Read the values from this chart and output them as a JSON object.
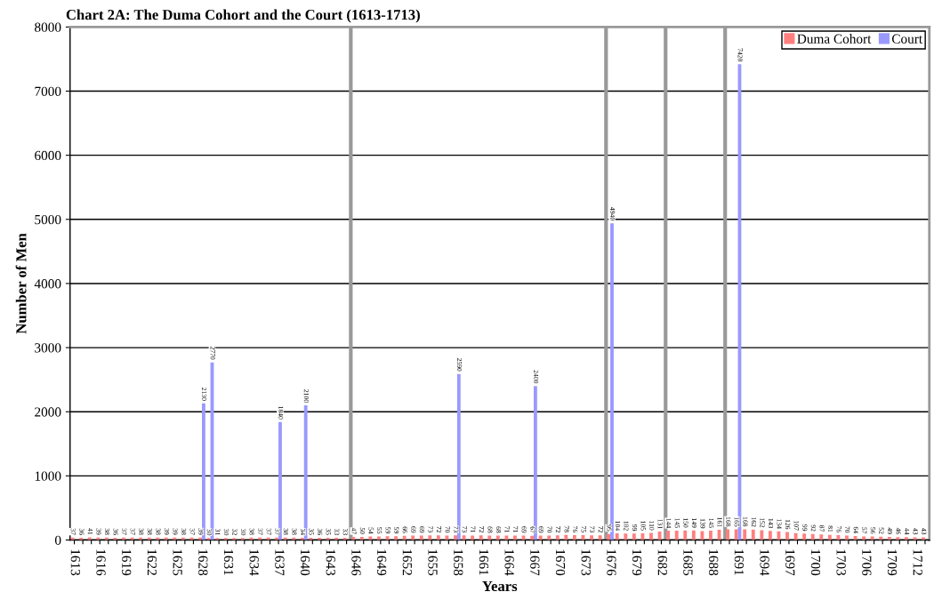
{
  "chart_data": {
    "type": "bar",
    "title": "Chart 2A: The Duma Cohort and the Court (1613-1713)",
    "xlabel": "Years",
    "ylabel": "Number of Men",
    "x": [
      1613,
      1614,
      1615,
      1616,
      1617,
      1618,
      1619,
      1620,
      1621,
      1622,
      1623,
      1624,
      1625,
      1626,
      1627,
      1628,
      1629,
      1630,
      1631,
      1632,
      1633,
      1634,
      1635,
      1636,
      1637,
      1638,
      1639,
      1640,
      1641,
      1642,
      1643,
      1644,
      1645,
      1646,
      1647,
      1648,
      1649,
      1650,
      1651,
      1652,
      1653,
      1654,
      1655,
      1656,
      1657,
      1658,
      1659,
      1660,
      1661,
      1662,
      1663,
      1664,
      1665,
      1666,
      1667,
      1668,
      1669,
      1670,
      1671,
      1672,
      1673,
      1674,
      1675,
      1676,
      1677,
      1678,
      1679,
      1680,
      1681,
      1682,
      1683,
      1684,
      1685,
      1686,
      1687,
      1688,
      1689,
      1690,
      1691,
      1692,
      1693,
      1694,
      1695,
      1696,
      1697,
      1698,
      1699,
      1700,
      1701,
      1702,
      1703,
      1704,
      1705,
      1706,
      1707,
      1708,
      1709,
      1710,
      1711,
      1712,
      1713
    ],
    "series": [
      {
        "name": "Duma Cohort",
        "color": "#ff7f7f",
        "values": [
          37,
          36,
          41,
          39,
          38,
          36,
          37,
          37,
          38,
          38,
          38,
          39,
          39,
          38,
          37,
          39,
          30,
          31,
          30,
          32,
          30,
          38,
          37,
          37,
          37,
          38,
          38,
          34,
          35,
          36,
          35,
          33,
          33,
          47,
          50,
          54,
          55,
          59,
          59,
          66,
          69,
          69,
          73,
          72,
          70,
          73,
          73,
          71,
          72,
          68,
          68,
          71,
          71,
          69,
          67,
          69,
          70,
          72,
          78,
          76,
          75,
          73,
          72,
          95,
          104,
          102,
          99,
          105,
          110,
          131,
          144,
          145,
          150,
          149,
          139,
          145,
          161,
          168,
          165,
          168,
          162,
          152,
          143,
          134,
          126,
          107,
          99,
          92,
          87,
          81,
          76,
          70,
          64,
          57,
          56,
          52,
          49,
          46,
          44,
          43,
          43
        ]
      },
      {
        "name": "Court",
        "color": "#9999ff",
        "values": [
          null,
          null,
          null,
          null,
          null,
          null,
          null,
          null,
          null,
          null,
          null,
          null,
          null,
          null,
          null,
          2130,
          2770,
          null,
          null,
          null,
          null,
          null,
          null,
          null,
          1840,
          null,
          null,
          2100,
          null,
          null,
          null,
          null,
          null,
          null,
          null,
          null,
          null,
          null,
          null,
          null,
          null,
          null,
          null,
          null,
          null,
          2590,
          null,
          null,
          null,
          null,
          null,
          null,
          null,
          null,
          2400,
          null,
          null,
          null,
          null,
          null,
          null,
          null,
          null,
          4940,
          null,
          null,
          null,
          null,
          null,
          null,
          null,
          null,
          null,
          null,
          null,
          null,
          null,
          null,
          7420,
          null,
          null,
          null,
          null,
          null,
          null,
          null,
          null,
          null,
          null,
          null,
          null,
          null,
          null,
          null,
          null,
          null,
          null,
          null,
          null,
          null,
          null
        ]
      }
    ],
    "xlim": [
      1612.5,
      1713.5
    ],
    "xticks": [
      1613,
      {
        "value": 1614,
        "label": null
      },
      {
        "value": 1615,
        "label": null
      },
      1616,
      {
        "value": 1617,
        "label": null
      },
      {
        "value": 1618,
        "label": null
      },
      1619,
      {
        "value": 1620,
        "label": null
      },
      {
        "value": 1621,
        "label": null
      },
      1622,
      {
        "value": 1623,
        "label": null
      },
      {
        "value": 1624,
        "label": null
      },
      1625,
      {
        "value": 1626,
        "label": null
      },
      {
        "value": 1627,
        "label": null
      },
      1628,
      {
        "value": 1629,
        "label": null
      },
      {
        "value": 1630,
        "label": null
      },
      1631,
      {
        "value": 1632,
        "label": null
      },
      {
        "value": 1633,
        "label": null
      },
      1634,
      {
        "value": 1635,
        "label": null
      },
      {
        "value": 1636,
        "label": null
      },
      1637,
      {
        "value": 1638,
        "label": null
      },
      {
        "value": 1639,
        "label": null
      },
      1640,
      {
        "value": 1641,
        "label": null
      },
      {
        "value": 1642,
        "label": null
      },
      1643,
      {
        "value": 1644,
        "label": null
      },
      {
        "value": 1645,
        "label": null
      },
      1646,
      {
        "value": 1647,
        "label": null
      },
      {
        "value": 1648,
        "label": null
      },
      1649,
      {
        "value": 1650,
        "label": null
      },
      {
        "value": 1651,
        "label": null
      },
      1652,
      {
        "value": 1653,
        "label": null
      },
      {
        "value": 1654,
        "label": null
      },
      1655,
      {
        "value": 1656,
        "label": null
      },
      {
        "value": 1657,
        "label": null
      },
      1658,
      {
        "value": 1659,
        "label": null
      },
      {
        "value": 1660,
        "label": null
      },
      1661,
      {
        "value": 1662,
        "label": null
      },
      {
        "value": 1663,
        "label": null
      },
      1664,
      {
        "value": 1665,
        "label": null
      },
      {
        "value": 1666,
        "label": null
      },
      1667,
      {
        "value": 1668,
        "label": null
      },
      {
        "value": 1669,
        "label": null
      },
      1670,
      {
        "value": 1671,
        "label": null
      },
      {
        "value": 1672,
        "label": null
      },
      1673,
      {
        "value": 1674,
        "label": null
      },
      {
        "value": 1675,
        "label": null
      },
      1676,
      {
        "value": 1677,
        "label": null
      },
      {
        "value": 1678,
        "label": null
      },
      1679,
      {
        "value": 1680,
        "label": null
      },
      {
        "value": 1681,
        "label": null
      },
      1682,
      {
        "value": 1683,
        "label": null
      },
      {
        "value": 1684,
        "label": null
      },
      1685,
      {
        "value": 1686,
        "label": null
      },
      {
        "value": 1687,
        "label": null
      },
      1688,
      {
        "value": 1689,
        "label": null
      },
      {
        "value": 1690,
        "label": null
      },
      1691,
      {
        "value": 1692,
        "label": null
      },
      {
        "value": 1693,
        "label": null
      },
      1694,
      {
        "value": 1695,
        "label": null
      },
      {
        "value": 1696,
        "label": null
      },
      1697,
      {
        "value": 1698,
        "label": null
      },
      {
        "value": 1699,
        "label": null
      },
      1700,
      {
        "value": 1701,
        "label": null
      },
      {
        "value": 1702,
        "label": null
      },
      1703,
      {
        "value": 1704,
        "label": null
      },
      {
        "value": 1705,
        "label": null
      },
      1706,
      {
        "value": 1707,
        "label": null
      },
      {
        "value": 1708,
        "label": null
      },
      1709,
      {
        "value": 1710,
        "label": null
      },
      {
        "value": 1711,
        "label": null
      },
      1712,
      {
        "value": 1713,
        "label": null
      }
    ],
    "ylim": [
      0,
      8000
    ],
    "yticks": [
      0,
      1000,
      2000,
      3000,
      4000,
      5000,
      6000,
      7000,
      8000
    ],
    "ref_lines": [
      {
        "axis": "x",
        "value": 1645.5,
        "color": "#999999"
      },
      {
        "axis": "x",
        "value": 1675.5,
        "color": "#999999"
      },
      {
        "axis": "x",
        "value": 1682.5,
        "color": "#999999"
      },
      {
        "axis": "x",
        "value": 1689.5,
        "color": "#999999"
      }
    ],
    "grid": "y",
    "legend": "top right",
    "data_labels": true
  }
}
